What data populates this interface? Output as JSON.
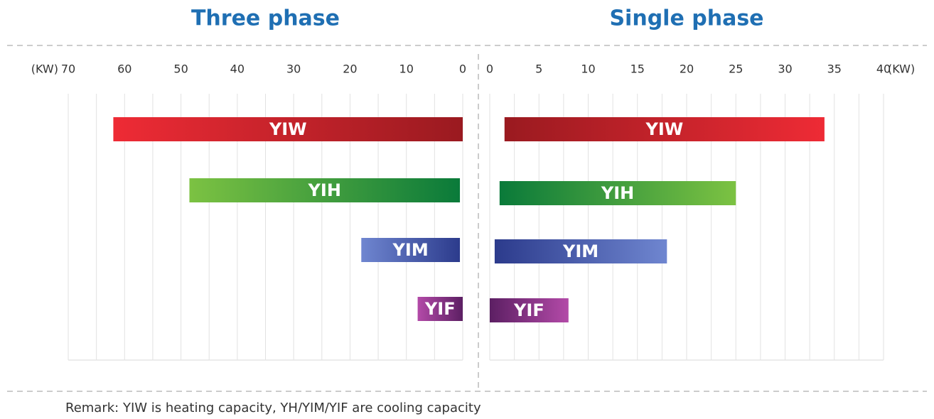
{
  "chart_data": [
    {
      "type": "range_bar",
      "title": "Three phase",
      "xlabel": "(KW)",
      "categories": [
        "YIW",
        "YIH",
        "YIM",
        "YIF"
      ],
      "values": [
        [
          0,
          62
        ],
        [
          0.5,
          48.5
        ],
        [
          0.5,
          18
        ],
        [
          0,
          8
        ]
      ],
      "colors": [
        [
          "#ee2b35",
          "#9a1a20"
        ],
        [
          "#7cc242",
          "#0a7a3a"
        ],
        [
          "#6f86d0",
          "#2c3b8c"
        ],
        [
          "#b34aa8",
          "#5c1f63"
        ]
      ],
      "xlim": [
        70,
        0
      ],
      "xticks": [
        70,
        60,
        50,
        40,
        30,
        20,
        10,
        0
      ],
      "grid": true
    },
    {
      "type": "range_bar",
      "title": "Single phase",
      "xlabel": "(KW)",
      "categories": [
        "YIW",
        "YIH",
        "YIM",
        "YIF"
      ],
      "values": [
        [
          1.5,
          34
        ],
        [
          1,
          25
        ],
        [
          0.5,
          18
        ],
        [
          0,
          8
        ]
      ],
      "colors": [
        [
          "#9a1a20",
          "#ee2b35"
        ],
        [
          "#0a7a3a",
          "#7cc242"
        ],
        [
          "#2c3b8c",
          "#6f86d0"
        ],
        [
          "#5c1f63",
          "#b34aa8"
        ]
      ],
      "xlim": [
        0,
        40
      ],
      "xticks": [
        0,
        5,
        10,
        15,
        20,
        25,
        30,
        35,
        40
      ],
      "grid": true
    }
  ],
  "remark": "Remark: YIW is heating capacity, YH/YIM/YIF are cooling capacity"
}
